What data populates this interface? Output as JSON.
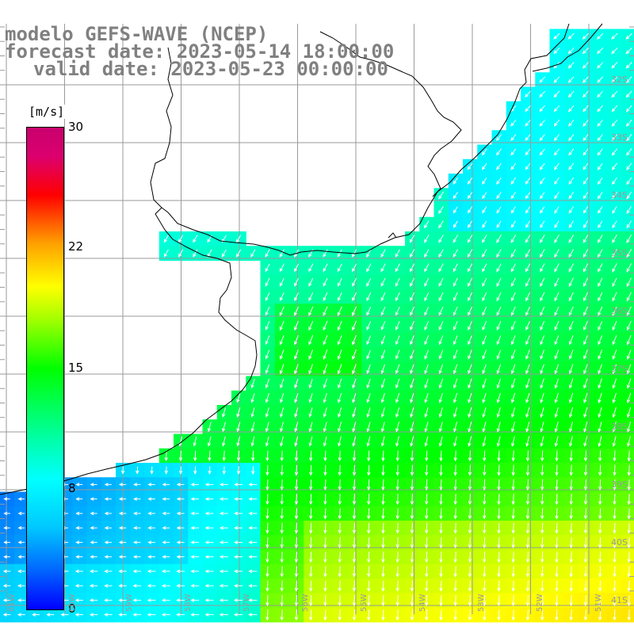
{
  "header": {
    "title": "modelo GEFS-WAVE (NCEP)",
    "forecast": "forecast date: 2023-05-14 18:00:00",
    "valid": "valid date: 2023-05-23 00:00:00"
  },
  "colorbar": {
    "unit": "[m/s]",
    "ticks": [
      "30",
      "22",
      "15",
      "8",
      "0"
    ],
    "min": 0,
    "max": 30,
    "colors": [
      "#0000ff",
      "#0064ff",
      "#00c8ff",
      "#00ffff",
      "#00ffa0",
      "#00ff00",
      "#a0ff00",
      "#ffff00",
      "#ffa000",
      "#ff0000",
      "#c8006e"
    ]
  },
  "latitude_labels": [
    "32S",
    "33S",
    "34S",
    "35S",
    "36S",
    "37S",
    "38S",
    "39S",
    "40S",
    "41S"
  ],
  "longitude_labels": [
    "61W",
    "60W",
    "59W",
    "58W",
    "57W",
    "56W",
    "55W",
    "54W",
    "53W",
    "52W",
    "51W"
  ],
  "wind_direction": "from north-east, turning north toward the south",
  "field": "wind speed (m/s)"
}
